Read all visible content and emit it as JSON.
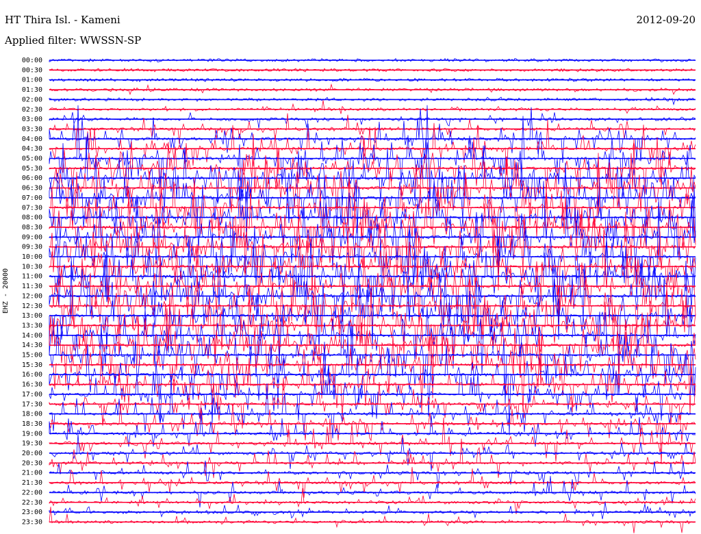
{
  "header": {
    "station": "HT Thira Isl. - Kameni",
    "date": "2012-09-20",
    "filter": "Applied filter: WWSSN-SP"
  },
  "colors": {
    "trace_a": "#0000ff",
    "trace_b": "#ff0033",
    "background": "#ffffff"
  },
  "chart_data": {
    "type": "line",
    "title": "HT Thira Isl. - Kameni",
    "subtitle": "Applied filter: WWSSN-SP",
    "ylabel": "EHZ - 20000",
    "xlabel": "",
    "row_labels": [
      "00:00",
      "00:30",
      "01:00",
      "01:30",
      "02:00",
      "02:30",
      "03:00",
      "03:30",
      "04:00",
      "04:30",
      "05:00",
      "05:30",
      "06:00",
      "06:30",
      "07:00",
      "07:30",
      "08:00",
      "08:30",
      "09:00",
      "09:30",
      "10:00",
      "10:30",
      "11:00",
      "11:30",
      "12:00",
      "12:30",
      "13:00",
      "13:30",
      "14:00",
      "14:30",
      "15:00",
      "15:30",
      "16:00",
      "16:30",
      "17:00",
      "17:30",
      "18:00",
      "18:30",
      "19:00",
      "19:30",
      "20:00",
      "20:30",
      "21:00",
      "21:30",
      "22:00",
      "22:30",
      "23:00",
      "23:30"
    ],
    "row_tick_labels": [
      "00:00",
      "00:30",
      "01:00",
      "01:30",
      "02:00",
      "02:30",
      "03:00",
      "03:30",
      "04:00",
      "04:30",
      "05:00",
      "05:30",
      "06:00",
      "06:30",
      "07:00",
      "07:30",
      "08:00",
      "08:30",
      "09:00",
      "09:30",
      "10:00",
      "10:30",
      "11:00",
      "11:30",
      "12:00",
      "12:30",
      "13:00",
      "13:30",
      "14:00",
      "14:30",
      "15:00",
      "15:30",
      "16:00",
      "16:30",
      "17:00",
      "17:30",
      "18:00",
      "18:30",
      "19:00",
      "19:30",
      "20:00",
      "20:30",
      "21:00",
      "21:30",
      "22:00",
      "22:30",
      "23:00",
      "23:30"
    ],
    "row_colors": [
      "blue",
      "red"
    ],
    "row_activity": [
      0.05,
      0.06,
      0.05,
      0.12,
      0.08,
      0.15,
      0.2,
      0.35,
      0.55,
      0.6,
      0.7,
      0.75,
      0.8,
      0.85,
      0.9,
      0.9,
      0.9,
      0.9,
      0.9,
      0.9,
      0.9,
      0.9,
      0.9,
      0.9,
      0.9,
      0.9,
      0.9,
      0.9,
      0.85,
      0.9,
      0.8,
      0.8,
      0.75,
      0.7,
      0.6,
      0.55,
      0.5,
      0.5,
      0.45,
      0.45,
      0.4,
      0.4,
      0.35,
      0.35,
      0.3,
      0.3,
      0.25,
      0.25
    ],
    "grid": false
  }
}
